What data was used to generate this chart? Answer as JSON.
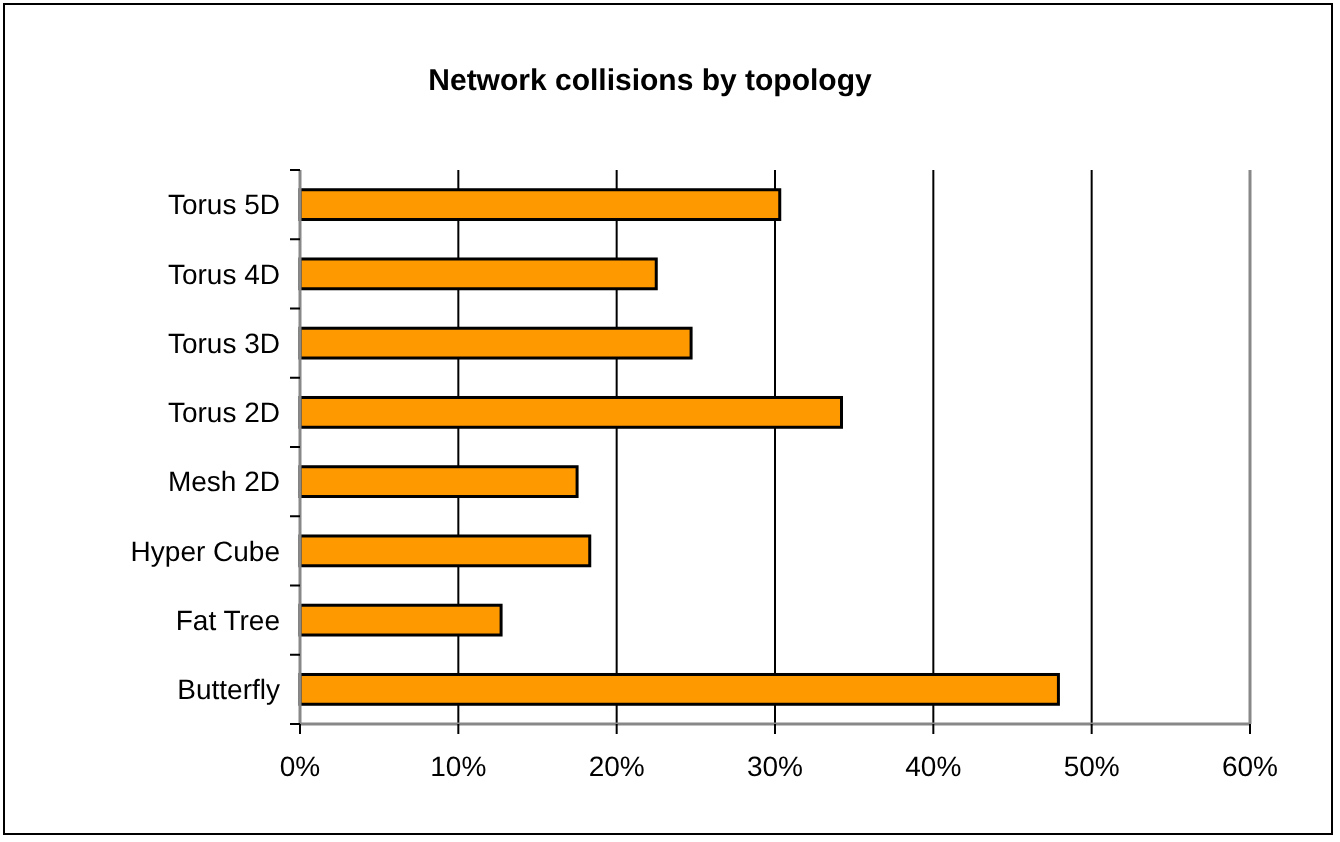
{
  "chart_data": {
    "type": "bar",
    "orientation": "horizontal",
    "title": "Network collisions by topology",
    "categories": [
      "Torus 5D",
      "Torus 4D",
      "Torus 3D",
      "Torus 2D",
      "Mesh 2D",
      "Hyper Cube",
      "Fat Tree",
      "Butterfly"
    ],
    "values": [
      30.3,
      22.5,
      24.7,
      34.2,
      17.5,
      18.3,
      12.7,
      47.9
    ],
    "color": "#ff9900",
    "xlim": [
      0,
      60
    ],
    "xticks": [
      {
        "value": 0,
        "label": "0%"
      },
      {
        "value": 10,
        "label": "10%"
      },
      {
        "value": 20,
        "label": "20%"
      },
      {
        "value": 30,
        "label": "30%"
      },
      {
        "value": 40,
        "label": "40%"
      },
      {
        "value": 50,
        "label": "50%"
      },
      {
        "value": 60,
        "label": "60%"
      }
    ],
    "grid": "x"
  }
}
